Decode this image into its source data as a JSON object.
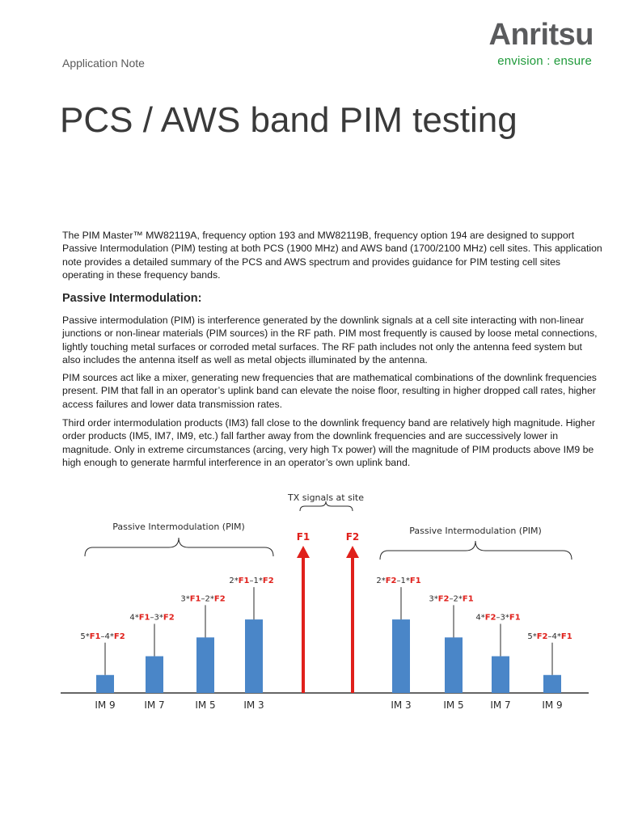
{
  "header": {
    "doc_type": "Application Note",
    "logo": {
      "wordmark": "Anritsu",
      "tagline": "envision : ensure"
    }
  },
  "title": "PCS / AWS band PIM testing",
  "intro": "The PIM Master™ MW82119A, frequency option 193 and MW82119B, frequency option 194 are designed to support Passive Intermodulation (PIM) testing at both PCS (1900 MHz) and AWS band (1700/2100 MHz) cell sites. This application note provides a detailed summary of the PCS and AWS spectrum and provides guidance for PIM testing cell sites operating in these frequency bands.",
  "section": {
    "heading": "Passive Intermodulation:",
    "paragraphs": [
      "Passive intermodulation (PIM) is interference generated by the downlink signals at a cell site interacting with non-linear junctions or non-linear materials (PIM sources) in the RF path. PIM most frequently is caused by loose metal connections, lightly touching metal surfaces or corroded metal surfaces. The RF path includes not only the antenna feed system but also includes the antenna itself as well as metal objects illuminated by the antenna.",
      "PIM sources act like a mixer, generating new frequencies that are mathematical combinations of the downlink frequencies present. PIM that fall in an operator’s uplink band can elevate the noise floor, resulting in higher dropped call rates, higher access failures and lower data transmission rates.",
      "Third order intermodulation products (IM3) fall close to the downlink frequency band are relatively high magnitude. Higher order products (IM5, IM7, IM9, etc.) fall farther away from the downlink frequencies and are successively lower in magnitude. Only in extreme circumstances (arcing, very high Tx power) will the magnitude of PIM products above IM9 be high enough to generate harmful interference in an operator’s own uplink band."
    ]
  },
  "diagram": {
    "tx_label": "TX signals at site",
    "group_label_left": "Passive Intermodulation (PIM)",
    "group_label_right": "Passive Intermodulation (PIM)",
    "colors": {
      "bar": "#4a86c8",
      "arrow": "#e0201b",
      "formula_accent": "#e0201b",
      "text": "#2a2a2a"
    },
    "carriers": [
      {
        "label": "F1"
      },
      {
        "label": "F2"
      }
    ],
    "left_products": [
      {
        "order": "IM 9",
        "formula": [
          "5*",
          "F1",
          "–4*",
          "F2"
        ],
        "level": 0.22
      },
      {
        "order": "IM 7",
        "formula": [
          "4*",
          "F1",
          "–3*",
          "F2"
        ],
        "level": 0.45
      },
      {
        "order": "IM 5",
        "formula": [
          "3*",
          "F1",
          "–2*",
          "F2"
        ],
        "level": 0.68
      },
      {
        "order": "IM 3",
        "formula": [
          "2*",
          "F1",
          "–1*",
          "F2"
        ],
        "level": 0.9
      }
    ],
    "right_products": [
      {
        "order": "IM 3",
        "formula": [
          "2*",
          "F2",
          "–1*",
          "F1"
        ],
        "level": 0.9
      },
      {
        "order": "IM 5",
        "formula": [
          "3*",
          "F2",
          "–2*",
          "F1"
        ],
        "level": 0.68
      },
      {
        "order": "IM 7",
        "formula": [
          "4*",
          "F2",
          "–3*",
          "F1"
        ],
        "level": 0.45
      },
      {
        "order": "IM 9",
        "formula": [
          "5*",
          "F2",
          "–4*",
          "F1"
        ],
        "level": 0.22
      }
    ]
  }
}
